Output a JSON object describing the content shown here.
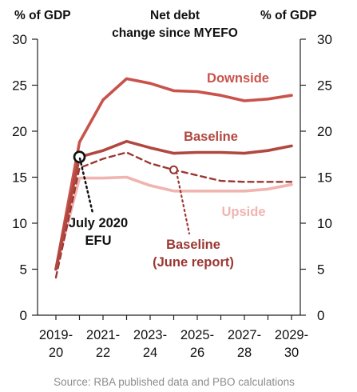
{
  "chart_data": {
    "type": "line",
    "title": "Net debt change since MYEFO",
    "title_lines": [
      "Net debt",
      "change since MYEFO"
    ],
    "ylabel_left": "% of GDP",
    "ylabel_right": "% of GDP",
    "ylim": [
      0,
      30
    ],
    "yticks": [
      0,
      5,
      10,
      15,
      20,
      25,
      30
    ],
    "xlim": [
      2019,
      2029
    ],
    "xtick_labels": [
      {
        "top": "2019-",
        "bottom": "20"
      },
      {
        "top": "2021-",
        "bottom": "22"
      },
      {
        "top": "2023-",
        "bottom": "24"
      },
      {
        "top": "2025-",
        "bottom": "26"
      },
      {
        "top": "2027-",
        "bottom": "28"
      },
      {
        "top": "2029-",
        "bottom": "30"
      }
    ],
    "grid": false,
    "series": [
      {
        "name": "Downside",
        "color": "#c9534b",
        "style": "solid",
        "x": [
          2019,
          2020,
          2021,
          2022,
          2023,
          2024,
          2025,
          2026,
          2027,
          2028,
          2029
        ],
        "y": [
          5.0,
          18.8,
          23.4,
          25.7,
          25.2,
          24.4,
          24.3,
          23.9,
          23.3,
          23.5,
          23.9
        ]
      },
      {
        "name": "Baseline",
        "color": "#b04840",
        "style": "solid",
        "x": [
          2019,
          2020,
          2021,
          2022,
          2023,
          2024,
          2025,
          2026,
          2027,
          2028,
          2029
        ],
        "y": [
          5.0,
          17.2,
          17.9,
          18.9,
          18.2,
          17.6,
          17.7,
          17.7,
          17.6,
          17.9,
          18.4
        ]
      },
      {
        "name": "Upside",
        "color": "#f0b4b1",
        "style": "solid",
        "x": [
          2019,
          2020,
          2021,
          2022,
          2023,
          2024,
          2025,
          2026,
          2027,
          2028,
          2029
        ],
        "y": [
          5.0,
          14.9,
          14.9,
          15.0,
          14.1,
          13.5,
          13.5,
          13.5,
          13.5,
          13.7,
          14.2
        ]
      },
      {
        "name": "Baseline (June report)",
        "color": "#9b3732",
        "style": "dashed",
        "x": [
          2019,
          2020,
          2021,
          2022,
          2023,
          2024,
          2025,
          2026,
          2027,
          2028,
          2029
        ],
        "y": [
          4.1,
          16.0,
          17.0,
          17.7,
          16.5,
          15.8,
          15.2,
          14.6,
          14.5,
          14.5,
          14.5
        ]
      }
    ],
    "markers": [
      {
        "name": "July 2020 EFU",
        "x": 2020,
        "y": 17.2
      },
      {
        "name": "Baseline (June report)",
        "x": 2024,
        "y": 15.8
      }
    ],
    "annotations": {
      "downside": "Downside",
      "baseline": "Baseline",
      "upside": "Upside",
      "efu_line1": "July 2020",
      "efu_line2": "EFU",
      "june_line1": "Baseline",
      "june_line2": "(June report)"
    },
    "source": "Source:  RBA published data and PBO calculations"
  }
}
